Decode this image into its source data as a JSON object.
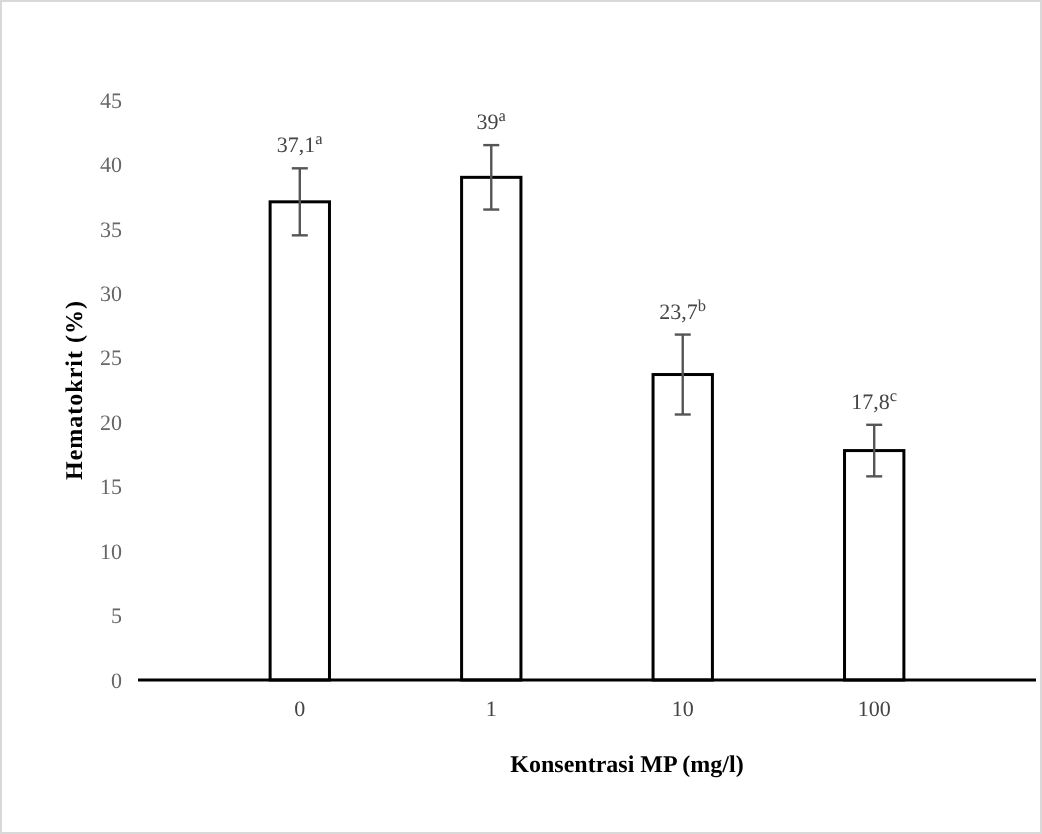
{
  "chart_data": {
    "type": "bar",
    "xlabel": "Konsentrasi MP (mg/l)",
    "ylabel": "Hematokrit (%)",
    "categories": [
      "0",
      "1",
      "10",
      "100"
    ],
    "values": [
      37.1,
      39,
      23.7,
      17.8
    ],
    "errors": [
      2.6,
      2.5,
      3.1,
      2
    ],
    "value_labels": [
      "37,1$^{a}$",
      "39$^{a}$",
      "23,7$^{b}$",
      "17,8$^{c}$"
    ],
    "color": "#ffffff",
    "ylim": [
      0,
      45
    ],
    "yticks": [
      0,
      5,
      10,
      15,
      20,
      25,
      30,
      35,
      40,
      45
    ],
    "grid": false
  }
}
